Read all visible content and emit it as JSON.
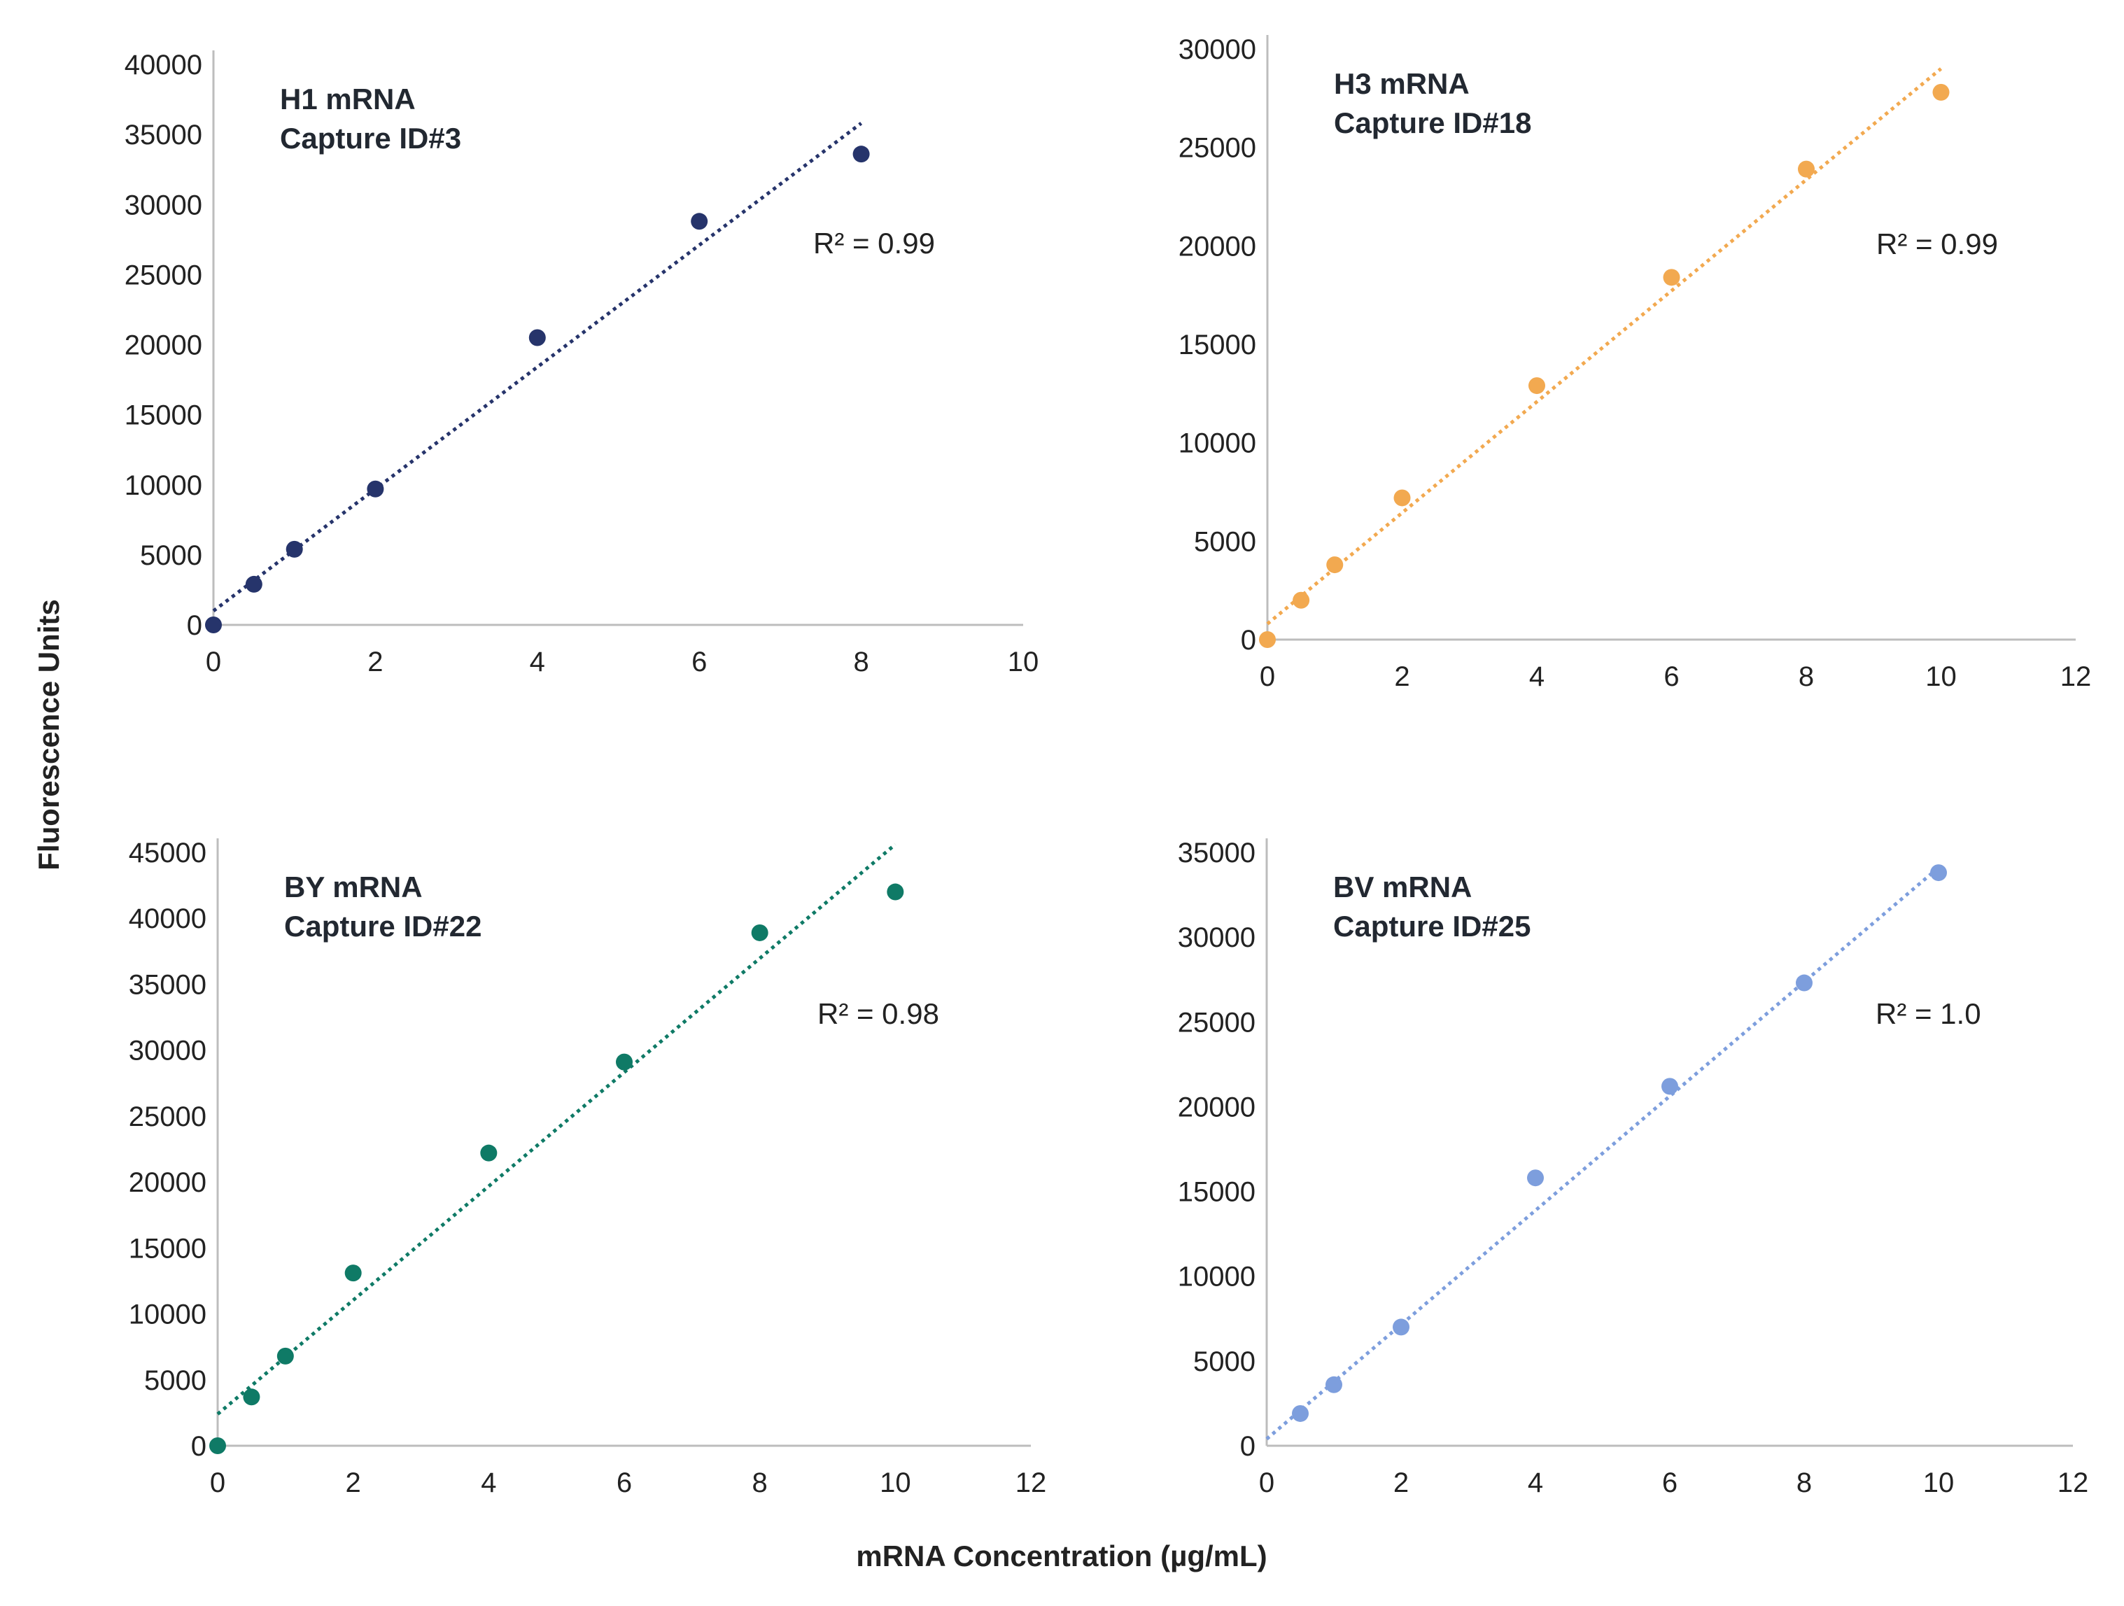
{
  "figure": {
    "shared_ylabel": "Fluorescence Units",
    "shared_xlabel": "mRNA Concentration (µg/mL)"
  },
  "chart_data": [
    {
      "type": "scatter",
      "title_line1": "H1 mRNA",
      "title_line2": "Capture ID#3",
      "r2_label": "R² = 0.99",
      "color": "#26346b",
      "xlim": [
        0,
        10
      ],
      "ylim": [
        0,
        40000
      ],
      "xticks": [
        0,
        2,
        4,
        6,
        8,
        10
      ],
      "yticks": [
        0,
        5000,
        10000,
        15000,
        20000,
        25000,
        30000,
        35000,
        40000
      ],
      "x": [
        0,
        0.5,
        1,
        2,
        4,
        6,
        8
      ],
      "y": [
        0,
        2900,
        5400,
        9700,
        20500,
        28800,
        33600
      ],
      "trendline": {
        "style": "dotted",
        "x": [
          0,
          8
        ],
        "y": [
          1000,
          35800
        ]
      }
    },
    {
      "type": "scatter",
      "title_line1": "H3 mRNA",
      "title_line2": "Capture ID#18",
      "r2_label": "R² = 0.99",
      "color": "#f2a950",
      "xlim": [
        0,
        12
      ],
      "ylim": [
        0,
        30000
      ],
      "xticks": [
        0,
        2,
        4,
        6,
        8,
        10,
        12
      ],
      "yticks": [
        0,
        5000,
        10000,
        15000,
        20000,
        25000,
        30000
      ],
      "x": [
        0,
        0.5,
        1,
        2,
        4,
        6,
        8,
        10
      ],
      "y": [
        0,
        2000,
        3800,
        7200,
        12900,
        18400,
        23900,
        27800
      ],
      "trendline": {
        "style": "dotted",
        "x": [
          0,
          10
        ],
        "y": [
          800,
          29000
        ]
      }
    },
    {
      "type": "scatter",
      "title_line1": "BY mRNA",
      "title_line2": "Capture ID#22",
      "r2_label": "R² = 0.98",
      "color": "#0f7a66",
      "xlim": [
        0,
        12
      ],
      "ylim": [
        0,
        45000
      ],
      "xticks": [
        0,
        2,
        4,
        6,
        8,
        10,
        12
      ],
      "yticks": [
        0,
        5000,
        10000,
        15000,
        20000,
        25000,
        30000,
        35000,
        40000,
        45000
      ],
      "x": [
        0,
        0.5,
        1,
        2,
        4,
        6,
        8,
        10
      ],
      "y": [
        0,
        3700,
        6800,
        13100,
        22200,
        29100,
        38900,
        42000
      ],
      "trendline": {
        "style": "dotted",
        "x": [
          0,
          10
        ],
        "y": [
          2400,
          45600
        ]
      }
    },
    {
      "type": "scatter",
      "title_line1": "BV mRNA",
      "title_line2": "Capture ID#25",
      "r2_label": "R² = 1.0",
      "color": "#7d9edd",
      "xlim": [
        0,
        12
      ],
      "ylim": [
        0,
        35000
      ],
      "xticks": [
        0,
        2,
        4,
        6,
        8,
        10,
        12
      ],
      "yticks": [
        0,
        5000,
        10000,
        15000,
        20000,
        25000,
        30000,
        35000
      ],
      "x": [
        0.5,
        1,
        2,
        4,
        6,
        8,
        10
      ],
      "y": [
        1900,
        3600,
        7000,
        15800,
        21200,
        27300,
        33800
      ],
      "trendline": {
        "style": "dotted",
        "x": [
          0,
          10
        ],
        "y": [
          400,
          34100
        ]
      }
    }
  ]
}
